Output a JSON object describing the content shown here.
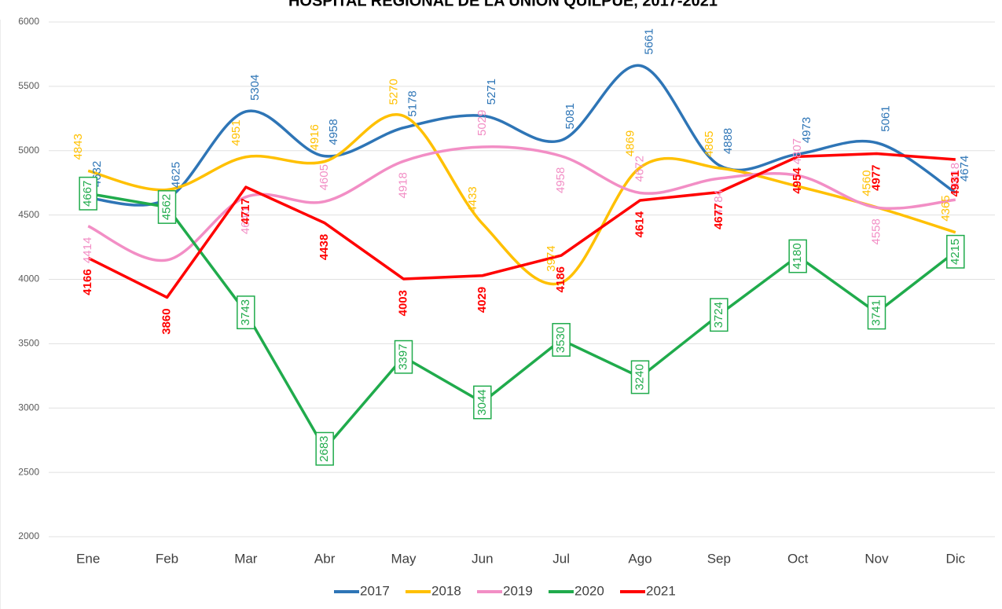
{
  "chart_data": {
    "type": "line",
    "title": "HOSPITAL REGIONAL DE LA UNIÓN QUILPUÉ, 2017-2021",
    "categories": [
      "Ene",
      "Feb",
      "Mar",
      "Abr",
      "May",
      "Jun",
      "Jul",
      "Ago",
      "Sep",
      "Oct",
      "Nov",
      "Dic"
    ],
    "ylim": [
      2000,
      6000
    ],
    "yticks": [
      2000,
      2500,
      3000,
      3500,
      4000,
      4500,
      5000,
      5500,
      6000
    ],
    "grid": true,
    "legend": "bottom",
    "series": [
      {
        "name": "2017",
        "color": "#2e75b6",
        "smooth": true,
        "values": [
          4632,
          4625,
          5304,
          4958,
          5178,
          5271,
          5081,
          5661,
          4888,
          4973,
          5061,
          4674
        ]
      },
      {
        "name": "2018",
        "color": "#ffc000",
        "smooth": true,
        "values": [
          4843,
          4696,
          4951,
          4916,
          5270,
          4433,
          3974,
          4869,
          4865,
          4723,
          4560,
          4365
        ],
        "value_labels": [
          "4843",
          null,
          "4951",
          "4916",
          "5270",
          "4433",
          "3974",
          "4869",
          "4865",
          null,
          "4560",
          "4365"
        ]
      },
      {
        "name": "2019",
        "color": "#f28ec5",
        "smooth": true,
        "values": [
          4414,
          4150,
          4640,
          4605,
          4918,
          5029,
          4958,
          4672,
          4784,
          4807,
          4558,
          4618
        ],
        "value_labels": [
          "4414",
          null,
          "4640",
          "4605",
          "4918",
          "5029",
          "4958",
          "4672",
          "4784",
          "4807",
          "4558",
          "4618"
        ]
      },
      {
        "name": "2020",
        "color": "#20ab4c",
        "smooth": false,
        "values": [
          4667,
          4562,
          3743,
          2683,
          3397,
          3044,
          3530,
          3240,
          3724,
          4180,
          3741,
          4215
        ]
      },
      {
        "name": "2021",
        "color": "#ff0000",
        "smooth": false,
        "values": [
          4166,
          3860,
          4717,
          4438,
          4003,
          4029,
          4186,
          4614,
          4677,
          4954,
          4977,
          4931
        ]
      }
    ]
  }
}
